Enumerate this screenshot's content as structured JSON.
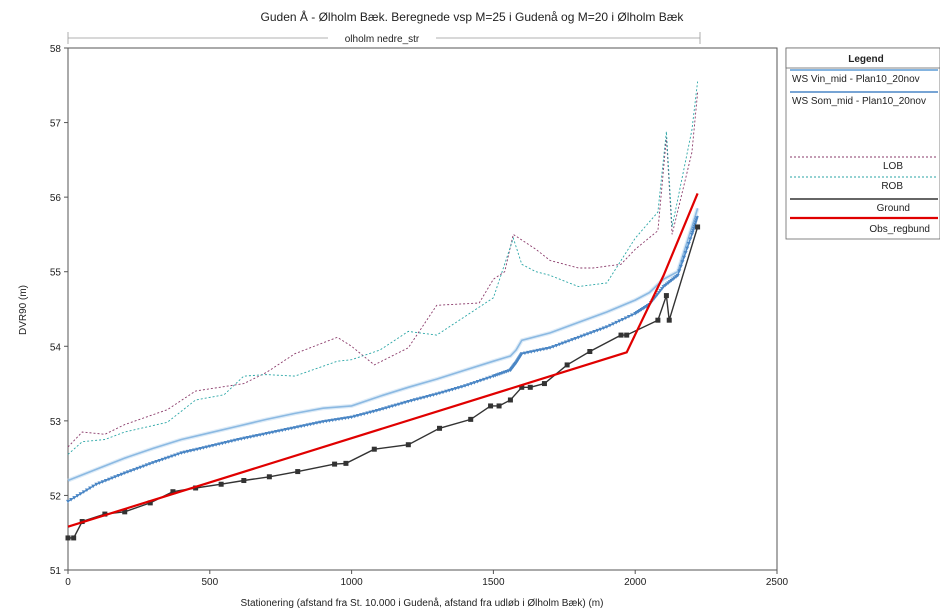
{
  "chart_data": {
    "type": "line",
    "title": "Guden Å - Ølholm Bæk. Beregnede vsp M=25 i Gudenå og M=20 i Ølholm Bæk",
    "reach_label": "olholm nedre_str",
    "xlabel": "Stationering (afstand fra St. 10.000 i Gudenå, afstand fra udløb i Ølholm Bæk)  (m)",
    "ylabel": "DVR90 (m)",
    "xlim": [
      0,
      2500
    ],
    "ylim": [
      51,
      58
    ],
    "xticks": [
      "0",
      "500",
      "1000",
      "1500",
      "2000",
      "2500"
    ],
    "yticks": [
      "51",
      "52",
      "53",
      "54",
      "55",
      "56",
      "57",
      "58"
    ],
    "grid": false,
    "legend_position": "right",
    "legend": {
      "title": "Legend",
      "entries": [
        {
          "label": "WS  Vin_mid - Plan10_20nov",
          "key": "ws_vin"
        },
        {
          "label": "WS  Som_mid - Plan10_20nov",
          "key": "ws_som"
        },
        {
          "label": "LOB",
          "key": "lob"
        },
        {
          "label": "ROB",
          "key": "rob"
        },
        {
          "label": "Ground",
          "key": "ground"
        },
        {
          "label": "Obs_regbund",
          "key": "obs"
        }
      ]
    },
    "colors": {
      "ws_vin": "#5b9bd5",
      "ws_som": "#4a86c5",
      "lob": "#8a3a6a",
      "rob": "#2aa6a6",
      "ground": "#333333",
      "obs": "#e00000"
    },
    "series": [
      {
        "key": "ws_vin",
        "x": [
          0,
          100,
          200,
          300,
          400,
          500,
          600,
          700,
          800,
          900,
          1000,
          1100,
          1200,
          1300,
          1400,
          1500,
          1560,
          1580,
          1600,
          1700,
          1800,
          1900,
          2000,
          2050,
          2100,
          2150,
          2200,
          2220
        ],
        "y": [
          52.2,
          52.35,
          52.5,
          52.63,
          52.75,
          52.84,
          52.93,
          53.02,
          53.1,
          53.17,
          53.2,
          53.33,
          53.45,
          53.56,
          53.68,
          53.8,
          53.87,
          53.95,
          54.08,
          54.18,
          54.32,
          54.46,
          54.62,
          54.72,
          54.9,
          55.0,
          55.6,
          55.85
        ]
      },
      {
        "key": "ws_som",
        "x": [
          0,
          100,
          200,
          300,
          400,
          500,
          600,
          700,
          800,
          900,
          1000,
          1100,
          1200,
          1300,
          1400,
          1500,
          1560,
          1580,
          1600,
          1700,
          1800,
          1900,
          2000,
          2050,
          2100,
          2150,
          2200,
          2220
        ],
        "y": [
          51.92,
          52.15,
          52.3,
          52.44,
          52.57,
          52.66,
          52.75,
          52.83,
          52.91,
          52.99,
          53.05,
          53.15,
          53.26,
          53.36,
          53.47,
          53.6,
          53.68,
          53.78,
          53.9,
          53.98,
          54.12,
          54.26,
          54.44,
          54.56,
          54.8,
          54.95,
          55.5,
          55.75
        ]
      },
      {
        "key": "lob",
        "x": [
          0,
          50,
          130,
          200,
          350,
          450,
          620,
          700,
          800,
          950,
          1000,
          1080,
          1200,
          1300,
          1450,
          1500,
          1540,
          1570,
          1650,
          1700,
          1800,
          1850,
          1950,
          2000,
          2080,
          2110,
          2130,
          2200,
          2220
        ],
        "y": [
          52.65,
          52.85,
          52.82,
          52.95,
          53.15,
          53.4,
          53.5,
          53.65,
          53.9,
          54.12,
          54.0,
          53.75,
          53.98,
          54.55,
          54.58,
          54.9,
          55.0,
          55.5,
          55.3,
          55.15,
          55.05,
          55.05,
          55.1,
          55.3,
          55.55,
          56.8,
          55.5,
          56.6,
          57.4
        ]
      },
      {
        "key": "rob",
        "x": [
          0,
          50,
          130,
          200,
          350,
          450,
          550,
          620,
          700,
          800,
          950,
          1000,
          1100,
          1200,
          1300,
          1400,
          1500,
          1570,
          1600,
          1650,
          1700,
          1800,
          1900,
          2000,
          2080,
          2110,
          2130,
          2200,
          2220
        ],
        "y": [
          52.55,
          52.72,
          52.75,
          52.85,
          52.98,
          53.28,
          53.35,
          53.6,
          53.62,
          53.6,
          53.8,
          53.82,
          53.95,
          54.2,
          54.15,
          54.4,
          54.65,
          55.45,
          55.1,
          55.0,
          54.95,
          54.8,
          54.85,
          55.45,
          55.8,
          56.88,
          55.6,
          56.9,
          57.55
        ]
      },
      {
        "key": "ground",
        "x": [
          0,
          20,
          50,
          130,
          200,
          290,
          370,
          450,
          540,
          620,
          710,
          810,
          940,
          980,
          1080,
          1200,
          1310,
          1420,
          1490,
          1520,
          1560,
          1600,
          1630,
          1680,
          1760,
          1840,
          1950,
          1970,
          2080,
          2110,
          2120,
          2220
        ],
        "y": [
          51.43,
          51.43,
          51.65,
          51.75,
          51.78,
          51.9,
          52.05,
          52.1,
          52.15,
          52.2,
          52.25,
          52.32,
          52.42,
          52.43,
          52.62,
          52.68,
          52.9,
          53.02,
          53.2,
          53.2,
          53.28,
          53.45,
          53.45,
          53.5,
          53.75,
          53.93,
          54.15,
          54.15,
          54.35,
          54.68,
          54.35,
          55.6
        ]
      },
      {
        "key": "obs",
        "x": [
          0,
          1970,
          2100,
          2220
        ],
        "y": [
          51.58,
          53.92,
          54.95,
          56.05
        ]
      }
    ]
  }
}
